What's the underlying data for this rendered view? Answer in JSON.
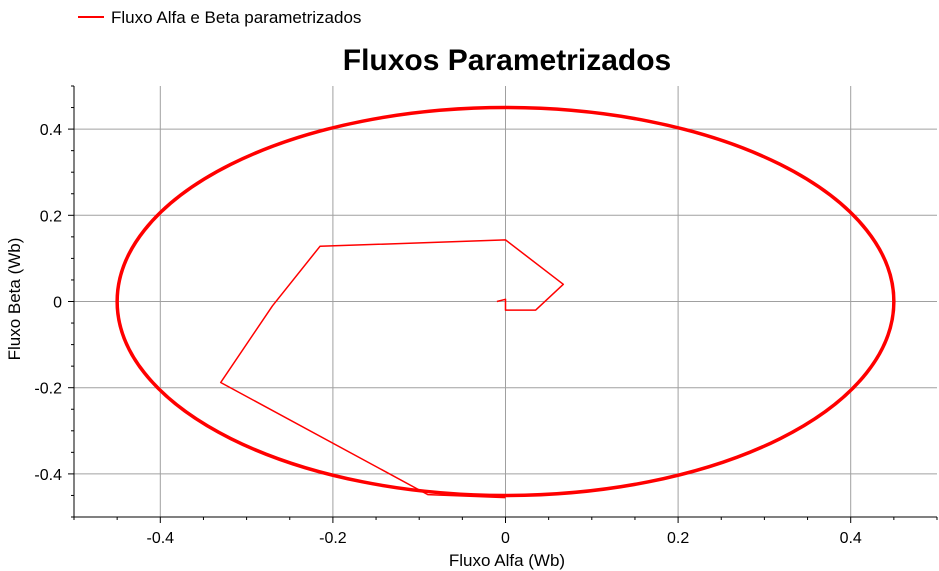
{
  "chart_data": {
    "type": "line",
    "title": "Fluxos Parametrizados",
    "xlabel": "Fluxo Alfa (Wb)",
    "ylabel": "Fluxo Beta (Wb)",
    "xlim": [
      -0.5,
      0.5
    ],
    "ylim": [
      -0.5,
      0.5
    ],
    "grid": true,
    "legend_position": "top-left",
    "x_ticks": [
      -0.4,
      -0.2,
      0,
      0.2,
      0.4
    ],
    "x_tick_labels": [
      "-0.4",
      "-0.2",
      "0",
      "0.2",
      "0.4"
    ],
    "y_ticks": [
      -0.4,
      -0.2,
      0,
      0.2,
      0.4
    ],
    "y_tick_labels": [
      "-0.4",
      "-0.2",
      "0",
      "0.2",
      "0.4"
    ],
    "series": [
      {
        "name": "Fluxo Alfa e Beta parametrizados",
        "color": "#ff0000",
        "transient": [
          [
            -0.01,
            0.0
          ],
          [
            0.0,
            0.005
          ],
          [
            0.0,
            -0.02
          ],
          [
            0.035,
            -0.02
          ],
          [
            0.067,
            0.04
          ],
          [
            0.0,
            0.143
          ],
          [
            -0.215,
            0.128
          ],
          [
            -0.27,
            -0.01
          ],
          [
            -0.33,
            -0.188
          ],
          [
            -0.09,
            -0.448
          ],
          [
            0.0,
            -0.455
          ]
        ],
        "steady_state": {
          "shape": "ellipse",
          "center": [
            0.0,
            0.0
          ],
          "radius_alfa": 0.45,
          "radius_beta": 0.45
        }
      }
    ]
  }
}
